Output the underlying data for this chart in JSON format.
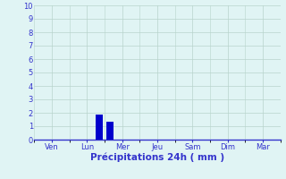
{
  "title": "Précipitations 24h ( mm )",
  "background_color": "#e0f4f4",
  "grid_color": "#b8d4cc",
  "axis_color": "#3333cc",
  "bar_color": "#0000cc",
  "ylim": [
    0,
    10
  ],
  "yticks": [
    0,
    1,
    2,
    3,
    4,
    5,
    6,
    7,
    8,
    9,
    10
  ],
  "day_labels": [
    "Ven",
    "Lun",
    "Mer",
    "Jeu",
    "Sam",
    "Dim",
    "Mar"
  ],
  "num_days": 7,
  "bar_data": [
    {
      "x": 1.35,
      "value": 1.85
    },
    {
      "x": 1.65,
      "value": 1.35
    }
  ],
  "bar_width": 0.22,
  "xlabel_fontsize": 7.5,
  "tick_fontsize": 6.0
}
